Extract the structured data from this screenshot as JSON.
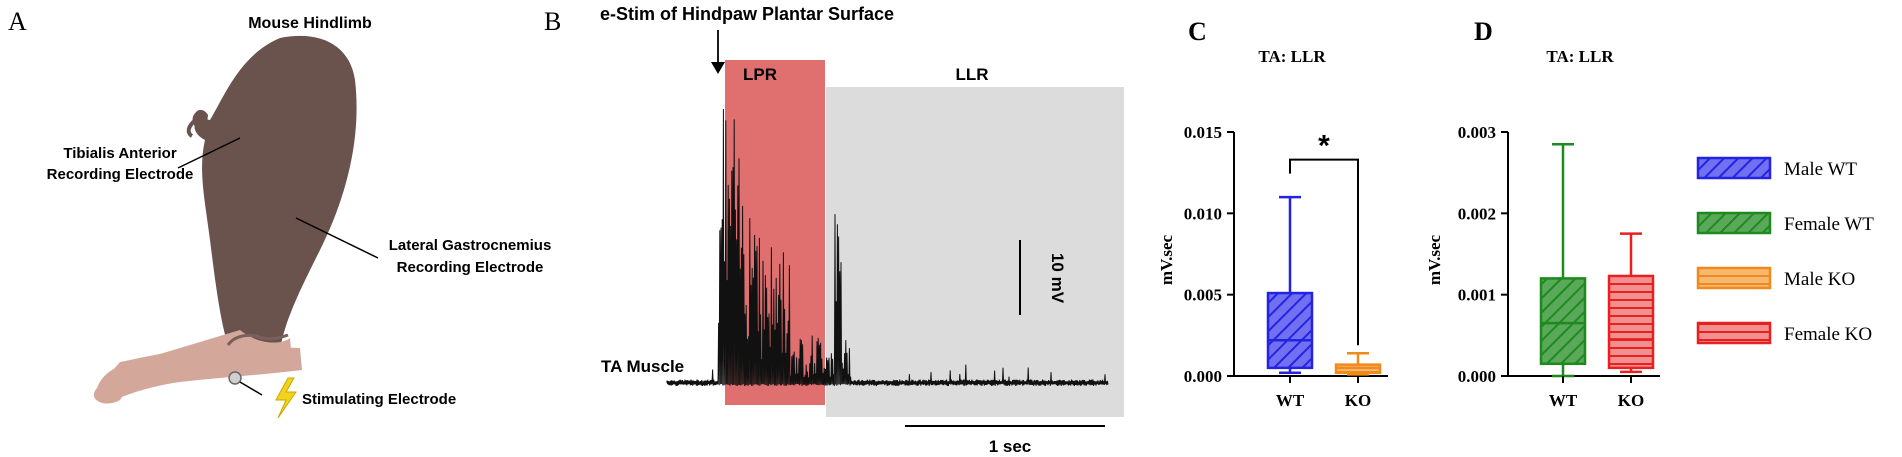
{
  "panel_a": {
    "letter": "A",
    "title": "Mouse Hindlimb",
    "labels": {
      "ta_line1": "Tibialis Anterior",
      "ta_line2": "Recording Electrode",
      "lg_line1": "Lateral Gastrocnemius",
      "lg_line2": "Recording Electrode",
      "stim": "Stimulating Electrode"
    },
    "colors": {
      "limb": "#6a524d",
      "paw": "#d4a79b",
      "stim": "#f2d21c"
    },
    "icons": [
      "hindlimb-illustration",
      "lightning-bolt-icon",
      "electrode-dot-icon"
    ]
  },
  "panel_b": {
    "letter": "B",
    "title": "e-Stim of Hindpaw Plantar Surface",
    "lpr_label": "LPR",
    "llr_label": "LLR",
    "trace_label": "TA Muscle",
    "scale_v": "10 mV",
    "scale_t": "1 sec",
    "colors": {
      "lpr": "#e07070",
      "llr": "#dcdcdc",
      "trace": "#111111"
    }
  },
  "chart_data": [
    {
      "panel": "C",
      "type": "box",
      "title": "TA: LLR",
      "ylabel": "mV.sec",
      "categories": [
        "WT",
        "KO"
      ],
      "ylim": [
        0,
        0.015
      ],
      "yticks": [
        "0.000",
        "0.005",
        "0.010",
        "0.015"
      ],
      "ytick_values": [
        0,
        0.005,
        0.01,
        0.015
      ],
      "series": [
        {
          "category": "WT",
          "min": 0.0002,
          "q1": 0.0005,
          "median": 0.0022,
          "q3": 0.0051,
          "max": 0.011,
          "color": "#2323e6",
          "fill": "#7070f0",
          "pattern": "hatch"
        },
        {
          "category": "KO",
          "min": 0.0001,
          "q1": 0.0002,
          "median": 0.0005,
          "q3": 0.0007,
          "max": 0.0014,
          "color": "#f08a1c",
          "fill": "#f7b870",
          "pattern": "lines"
        }
      ],
      "annotation": "*"
    },
    {
      "panel": "D",
      "type": "box",
      "title": "TA: LLR",
      "ylabel": "mV.sec",
      "categories": [
        "WT",
        "KO"
      ],
      "ylim": [
        0,
        0.003
      ],
      "yticks": [
        "0.000",
        "0.001",
        "0.002",
        "0.003"
      ],
      "ytick_values": [
        0,
        0.001,
        0.002,
        0.003
      ],
      "series": [
        {
          "category": "WT",
          "min": 0.0,
          "q1": 0.00015,
          "median": 0.00065,
          "q3": 0.0012,
          "max": 0.00285,
          "color": "#1e8a1e",
          "fill": "#5aa85a",
          "pattern": "hatch"
        },
        {
          "category": "KO",
          "min": 5e-05,
          "q1": 0.0001,
          "median": 0.00045,
          "q3": 0.00123,
          "max": 0.00175,
          "color": "#e82020",
          "fill": "#f29090",
          "pattern": "lines"
        }
      ]
    }
  ],
  "legend": {
    "placement": "right",
    "items": [
      {
        "label": "Male WT",
        "color": "#2323e6",
        "fill": "#7070f0",
        "pattern": "hatch"
      },
      {
        "label": "Female WT",
        "color": "#1e8a1e",
        "fill": "#5aa85a",
        "pattern": "hatch"
      },
      {
        "label": "Male KO",
        "color": "#f08a1c",
        "fill": "#f7b870",
        "pattern": "lines"
      },
      {
        "label": "Female KO",
        "color": "#e82020",
        "fill": "#f29090",
        "pattern": "lines"
      }
    ]
  }
}
